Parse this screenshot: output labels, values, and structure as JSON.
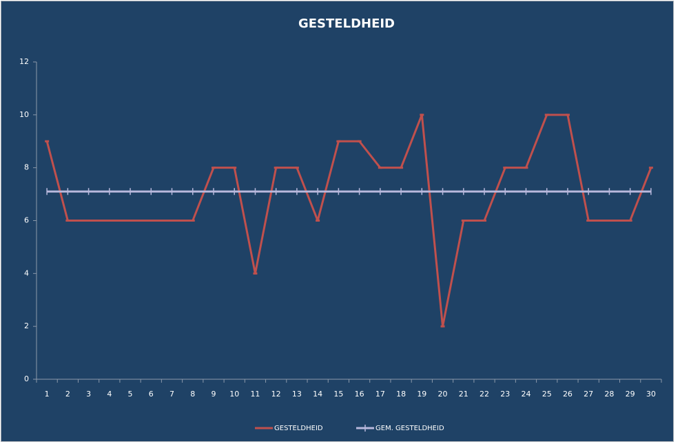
{
  "chart_data": {
    "type": "line",
    "title": "GESTELDHEID",
    "categories": [
      "1",
      "2",
      "3",
      "4",
      "5",
      "6",
      "7",
      "8",
      "9",
      "10",
      "11",
      "12",
      "13",
      "14",
      "15",
      "16",
      "17",
      "18",
      "19",
      "20",
      "21",
      "22",
      "23",
      "24",
      "25",
      "26",
      "27",
      "28",
      "29",
      "30"
    ],
    "series": [
      {
        "name": "GESTELDHEID",
        "color": "#c0504d",
        "values": [
          9,
          6,
          6,
          6,
          6,
          6,
          6,
          6,
          8,
          8,
          4,
          8,
          8,
          6,
          9,
          9,
          8,
          8,
          10,
          2,
          6,
          6,
          8,
          8,
          10,
          10,
          6,
          6,
          6,
          8
        ]
      },
      {
        "name": "GEM. GESTELDHEID",
        "color": "#b8b8dc",
        "values": [
          7.1,
          7.1,
          7.1,
          7.1,
          7.1,
          7.1,
          7.1,
          7.1,
          7.1,
          7.1,
          7.1,
          7.1,
          7.1,
          7.1,
          7.1,
          7.1,
          7.1,
          7.1,
          7.1,
          7.1,
          7.1,
          7.1,
          7.1,
          7.1,
          7.1,
          7.1,
          7.1,
          7.1,
          7.1,
          7.1
        ]
      }
    ],
    "ylim": [
      0,
      12
    ],
    "yticks": [
      0,
      2,
      4,
      6,
      8,
      10,
      12
    ],
    "grid": false,
    "legend": "bottom"
  }
}
